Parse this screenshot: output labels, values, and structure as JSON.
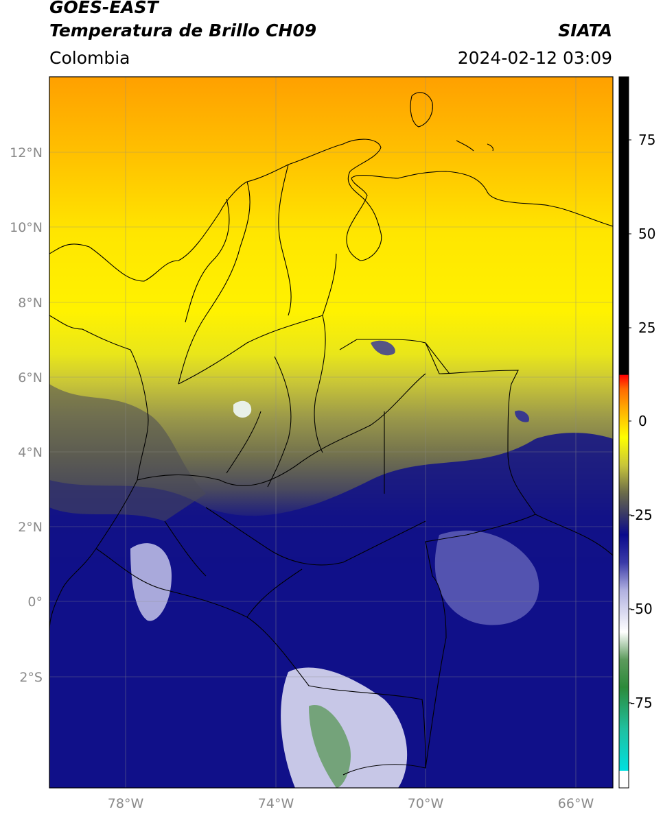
{
  "header": {
    "title_line1": "GOES-EAST",
    "title_line2": "Temperatura de Brillo CH09",
    "org": "SIATA",
    "region": "Colombia",
    "datetime": "2024-02-12 03:09"
  },
  "map": {
    "lat_labels": [
      "12°N",
      "10°N",
      "8°N",
      "6°N",
      "4°N",
      "2°N",
      "0°",
      "2°S"
    ],
    "lon_labels": [
      "78°W",
      "74°W",
      "70°W",
      "66°W"
    ],
    "lon_range": [
      -80,
      -65
    ],
    "lat_range": [
      -5,
      14
    ]
  },
  "colorbar": {
    "ticks": [
      "75",
      "50",
      "25",
      "0",
      "-25",
      "-50",
      "-75"
    ],
    "tick_values": [
      75,
      50,
      25,
      0,
      -25,
      -50,
      -75
    ],
    "range": [
      -95,
      90
    ],
    "colors": {
      "black": "#000000",
      "red": "#ff0000",
      "orange": "#ff8c00",
      "yellow": "#ffff00",
      "olive": "#4a4a3a",
      "navy": "#0a0a8c",
      "white": "#ffffff",
      "green": "#2e7d32",
      "cyan": "#00d8d8"
    }
  }
}
